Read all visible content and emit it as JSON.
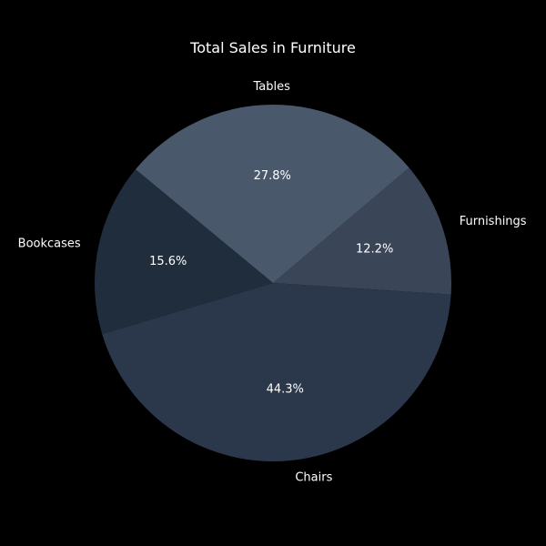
{
  "chart_data": {
    "type": "pie",
    "title": "Total Sales in Furniture",
    "categories": [
      "Furnishings",
      "Tables",
      "Bookcases",
      "Chairs"
    ],
    "values": [
      12.2,
      27.8,
      15.6,
      44.3
    ],
    "percent_labels": [
      "12.2%",
      "27.8%",
      "15.6%",
      "44.3%"
    ],
    "colors": [
      "#3a4558",
      "#4a586b",
      "#1f2d3d",
      "#2b384b"
    ],
    "start_angle_deg": -3.7,
    "direction": "counterclockwise",
    "legend": "none"
  }
}
